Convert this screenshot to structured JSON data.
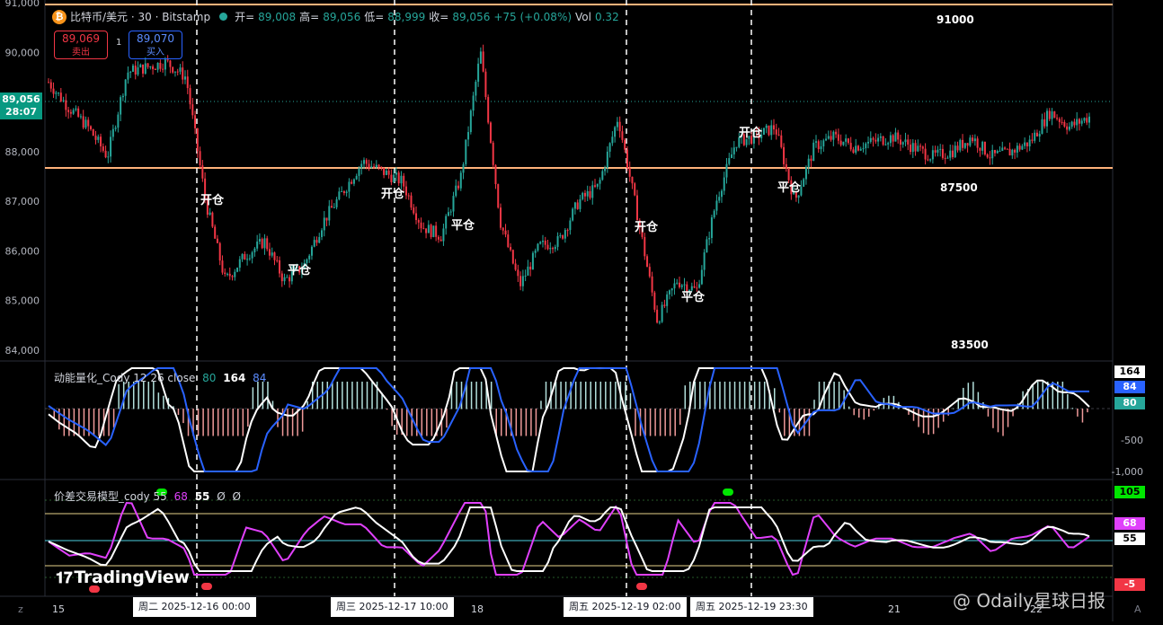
{
  "header": {
    "symbol_icon": "bitcoin-icon",
    "title": "比特币/美元 · 30 · Bitstamp",
    "open_label": "开=",
    "open": "89,008",
    "high_label": "高=",
    "high": "89,056",
    "low_label": "低=",
    "low": "88,999",
    "close_label": "收=",
    "close": "89,056",
    "change": "+75 (+0.08%)",
    "vol_label": "Vol",
    "vol": "0.32"
  },
  "quote": {
    "sell_price": "89,069",
    "sell_label": "卖出",
    "spread": "1",
    "buy_price": "89,070",
    "buy_label": "买入"
  },
  "current_price": {
    "price": "89,056",
    "countdown": "28:07"
  },
  "price_axis": [
    "91,000",
    "90,000",
    "89,000",
    "88,000",
    "87,000",
    "86,000",
    "85,000",
    "84,000"
  ],
  "levels": [
    "91000",
    "87500",
    "83500"
  ],
  "annotations": [
    "开仓",
    "平仓",
    "开仓",
    "平仓",
    "开仓",
    "平仓",
    "开仓",
    "平仓"
  ],
  "macd_pane": {
    "title": "动能量化_Cody 12 26 close",
    "v1": "80",
    "v2": "164",
    "v3": "84",
    "labels": [
      "164",
      "84",
      "80"
    ],
    "axis": [
      "-500",
      "-1,000"
    ]
  },
  "spread_pane": {
    "title": "价差交易模型_cody 55",
    "v1": "68",
    "v2": "55",
    "v3": "Ø",
    "v4": "Ø",
    "labels": [
      "105",
      "68",
      "55",
      "-5"
    ]
  },
  "time_axis": [
    "15",
    "18",
    "21",
    "22"
  ],
  "date_labels": [
    "周二 2025-12-16   00:00",
    "周三 2025-12-17   10:00",
    "周五 2025-12-19   02:00",
    "周五 2025-12-19   23:30"
  ],
  "logo": "TradingView",
  "watermark": "@ Odaily星球日报",
  "colors": {
    "up": "#26a69a",
    "down": "#f23645",
    "level_line": "#ffb27a",
    "macd_line": "#2962ff",
    "signal_line": "#ffffff",
    "spread_line": "#e040fb"
  },
  "chart_data": {
    "type": "candlestick",
    "title": "比特币/美元 · 30 · Bitstamp",
    "ylim": [
      84000,
      91000
    ],
    "close_path": [
      89400,
      88900,
      88500,
      87900,
      89600,
      89700,
      89800,
      89500,
      87000,
      85400,
      85900,
      86200,
      85400,
      85700,
      86600,
      87200,
      87800,
      87600,
      87400,
      86500,
      86300,
      87500,
      90000,
      86600,
      85300,
      86100,
      86200,
      87000,
      87300,
      88700,
      86700,
      84600,
      85400,
      85200,
      87000,
      88200,
      88300,
      88500,
      87000,
      88100,
      88300,
      88100,
      88200,
      88300,
      88100,
      87900,
      88000,
      88300,
      87900,
      88000,
      88200,
      88800,
      88500,
      88700
    ]
  }
}
